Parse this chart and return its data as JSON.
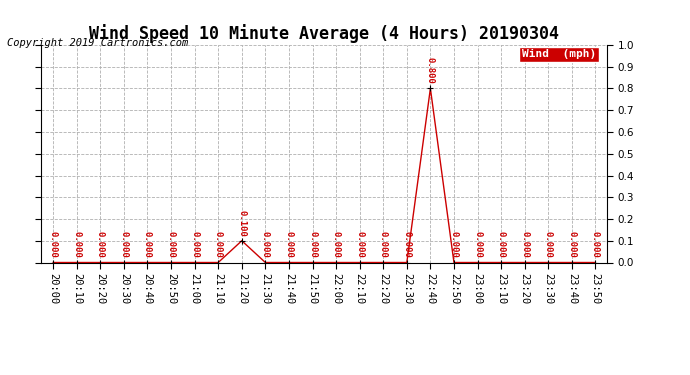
{
  "title": "Wind Speed 10 Minute Average (4 Hours) 20190304",
  "copyright": "Copyright 2019 Cartronics.com",
  "legend_label": "Wind  (mph)",
  "x_labels": [
    "20:00",
    "20:10",
    "20:20",
    "20:30",
    "20:40",
    "20:50",
    "21:00",
    "21:10",
    "21:20",
    "21:30",
    "21:40",
    "21:50",
    "22:00",
    "22:10",
    "22:20",
    "22:30",
    "22:40",
    "22:50",
    "23:00",
    "23:10",
    "23:20",
    "23:30",
    "23:40",
    "23:50"
  ],
  "wind_values": [
    0.0,
    0.0,
    0.0,
    0.0,
    0.0,
    0.0,
    0.0,
    0.0,
    0.1,
    0.0,
    0.0,
    0.0,
    0.0,
    0.0,
    0.0,
    0.0,
    0.8,
    0.0,
    0.0,
    0.0,
    0.0,
    0.0,
    0.0,
    0.0
  ],
  "line_color": "#cc0000",
  "bg_color": "#ffffff",
  "grid_color": "#b0b0b0",
  "ylim": [
    0.0,
    1.0
  ],
  "yticks": [
    0.0,
    0.1,
    0.2,
    0.3,
    0.4,
    0.5,
    0.6,
    0.7,
    0.8,
    0.9,
    1.0
  ],
  "annotation_color": "#cc0000",
  "legend_bg": "#cc0000",
  "legend_text_color": "#ffffff",
  "title_fontsize": 12,
  "copyright_fontsize": 7.5,
  "tick_fontsize": 7.5,
  "annotation_fontsize": 6.5
}
